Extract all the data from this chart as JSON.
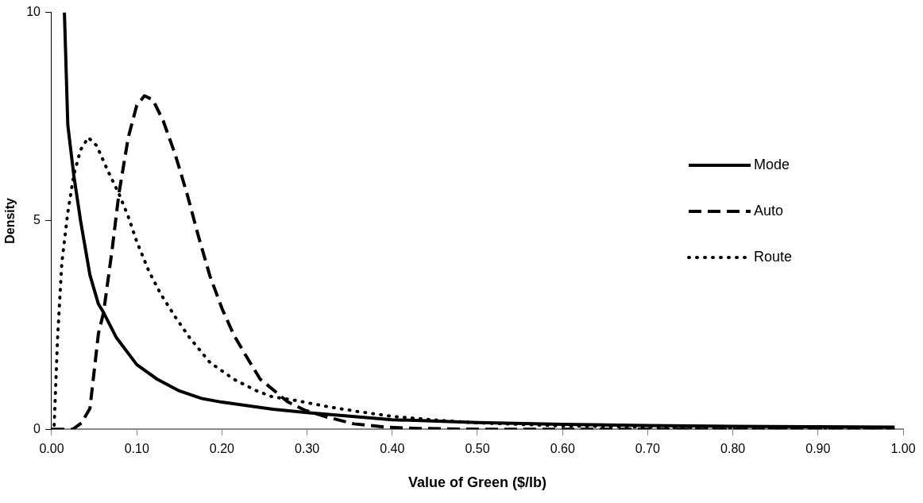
{
  "chart_data": {
    "type": "line",
    "xlabel": "Value of Green ($/lb)",
    "ylabel": "Density",
    "xlim": [
      0,
      1
    ],
    "ylim": [
      0,
      10
    ],
    "xticks": [
      {
        "value": 0,
        "label": "0.00"
      },
      {
        "value": 0.1,
        "label": "0.10"
      },
      {
        "value": 0.2,
        "label": "0.20"
      },
      {
        "value": 0.3,
        "label": "0.30"
      },
      {
        "value": 0.4,
        "label": "0.40"
      },
      {
        "value": 0.5,
        "label": "0.50"
      },
      {
        "value": 0.6,
        "label": "0.60"
      },
      {
        "value": 0.7,
        "label": "0.70"
      },
      {
        "value": 0.8,
        "label": "0.80"
      },
      {
        "value": 0.9,
        "label": "0.90"
      },
      {
        "value": 1,
        "label": "1.00"
      }
    ],
    "yticks": [
      0,
      5,
      10
    ],
    "grid": false,
    "legend": "right",
    "marker": "none",
    "series": [
      {
        "name": "Mode",
        "color": "#000000",
        "line_style": "solid",
        "x": [
          0.015,
          0.019,
          0.026,
          0.034,
          0.045,
          0.055,
          0.061,
          0.076,
          0.1,
          0.124,
          0.15,
          0.176,
          0.2,
          0.26,
          0.3,
          0.4,
          0.5,
          0.6,
          0.7,
          0.8,
          0.9,
          0.99
        ],
        "values": [
          10,
          7.3,
          6.1,
          5,
          3.7,
          3.0,
          2.8,
          2.2,
          1.55,
          1.2,
          0.92,
          0.74,
          0.65,
          0.48,
          0.4,
          0.23,
          0.16,
          0.12,
          0.09,
          0.07,
          0.06,
          0.05
        ]
      },
      {
        "name": "Auto",
        "color": "#000000",
        "line_style": "dashed",
        "x": [
          0.0,
          0.025,
          0.035,
          0.045,
          0.055,
          0.061,
          0.071,
          0.079,
          0.09,
          0.1,
          0.109,
          0.119,
          0.131,
          0.145,
          0.159,
          0.172,
          0.186,
          0.2,
          0.214,
          0.228,
          0.245,
          0.26,
          0.277,
          0.297,
          0.322,
          0.355,
          0.393,
          0.43,
          0.5,
          0.6,
          0.7,
          0.8,
          0.9,
          0.99
        ],
        "values": [
          0,
          0,
          0.15,
          0.5,
          2.3,
          2.8,
          4.3,
          5.65,
          7.0,
          7.77,
          8.0,
          7.9,
          7.4,
          6.6,
          5.65,
          4.66,
          3.67,
          2.9,
          2.26,
          1.77,
          1.2,
          0.95,
          0.66,
          0.46,
          0.3,
          0.13,
          0.05,
          0.02,
          0,
          0,
          0,
          0,
          0,
          0
        ]
      },
      {
        "name": "Route",
        "color": "#000000",
        "line_style": "dotted",
        "x": [
          0.003,
          0.007,
          0.012,
          0.019,
          0.026,
          0.034,
          0.043,
          0.053,
          0.066,
          0.079,
          0.09,
          0.1,
          0.114,
          0.128,
          0.145,
          0.162,
          0.186,
          0.214,
          0.241,
          0.259,
          0.287,
          0.322,
          0.358,
          0.4,
          0.445,
          0.493,
          0.6,
          0.7,
          0.8,
          0.9,
          0.99
        ],
        "values": [
          0.1,
          2.2,
          4.0,
          5.2,
          6.1,
          6.7,
          7.0,
          6.8,
          6.2,
          5.65,
          5.1,
          4.5,
          3.8,
          3.25,
          2.7,
          2.2,
          1.6,
          1.2,
          0.92,
          0.78,
          0.69,
          0.55,
          0.43,
          0.31,
          0.23,
          0.16,
          0.08,
          0.05,
          0.03,
          0.02,
          0.01
        ]
      }
    ]
  }
}
